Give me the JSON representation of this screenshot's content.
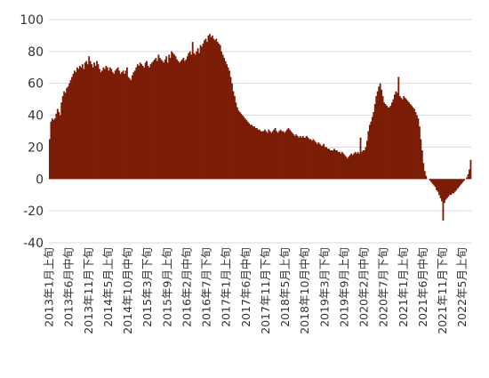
{
  "chart_data": {
    "type": "bar",
    "title": "",
    "xlabel": "",
    "ylabel": "",
    "ylim": [
      -40,
      100
    ],
    "yticks": [
      "100",
      "80",
      "60",
      "40",
      "20",
      "0",
      "-20",
      "-40"
    ],
    "grid": "horizontal",
    "legend": "none",
    "bar_color": "#7B1C06",
    "x_tick_labels": [
      "2013年1月上旬",
      "2013年6月中旬",
      "2013年11月下旬",
      "2014年5月上旬",
      "2014年10月中旬",
      "2015年3月下旬",
      "2015年9月上旬",
      "2016年2月中旬",
      "2016年7月下旬",
      "2017年1月上旬",
      "2017年6月中旬",
      "2017年11月下旬",
      "2018年5月上旬",
      "2018年10月中旬",
      "2019年3月下旬",
      "2019年9月上旬",
      "2020年2月中旬",
      "2020年7月下旬",
      "2021年1月上旬",
      "2021年6月中旬",
      "2021年11月下旬",
      "2022年5月上旬"
    ],
    "series": [
      {
        "values_by_tick_period": [
          [
            25,
            36,
            38,
            37,
            38,
            41,
            44,
            42,
            40,
            48,
            52,
            55,
            54,
            57,
            58
          ],
          [
            60,
            62,
            64,
            66,
            68,
            67,
            70,
            69,
            71,
            70,
            72,
            69,
            73,
            74,
            72
          ],
          [
            77,
            74,
            72,
            70,
            73,
            71,
            74,
            72,
            69,
            67,
            68,
            70,
            69,
            71,
            70
          ],
          [
            68,
            70,
            69,
            67,
            66,
            68,
            69,
            70,
            68,
            66,
            67,
            68,
            66,
            68,
            70
          ],
          [
            64,
            63,
            62,
            65,
            67,
            68,
            70,
            72,
            71,
            73,
            72,
            71,
            70,
            73,
            74
          ],
          [
            71,
            70,
            72,
            73,
            74,
            75,
            76,
            74,
            78,
            76,
            75,
            74,
            73,
            75,
            77
          ],
          [
            73,
            78,
            76,
            80,
            79,
            78,
            77,
            75,
            74,
            73,
            74,
            75,
            76,
            74,
            75
          ],
          [
            77,
            79,
            80,
            78,
            86,
            79,
            78,
            80,
            82,
            79,
            84,
            83,
            85,
            87,
            88
          ],
          [
            86,
            90,
            91,
            89,
            90,
            88,
            87,
            88,
            86,
            85,
            84,
            80,
            78,
            76,
            74
          ],
          [
            72,
            70,
            68,
            64,
            60,
            55,
            52,
            48,
            45,
            43,
            42,
            41,
            40,
            39,
            38
          ],
          [
            37,
            36,
            35,
            34,
            34,
            33,
            33,
            32,
            32,
            31,
            31,
            30,
            30,
            30,
            31
          ],
          [
            30,
            29,
            31,
            30,
            29,
            30,
            31,
            32,
            30,
            29,
            30,
            31,
            30,
            30,
            29
          ],
          [
            30,
            31,
            32,
            31,
            30,
            29,
            28,
            27,
            28,
            27,
            26,
            27,
            26,
            27,
            26
          ],
          [
            26,
            27,
            26,
            25,
            25,
            24,
            25,
            24,
            23,
            22,
            23,
            22,
            21,
            21,
            22
          ],
          [
            20,
            20,
            19,
            19,
            18,
            18,
            18,
            19,
            18,
            18,
            17,
            17,
            16,
            17,
            16
          ],
          [
            15,
            14,
            13,
            14,
            15,
            16,
            15,
            16,
            17,
            16,
            17,
            16,
            26,
            17,
            18
          ],
          [
            18,
            20,
            24,
            30,
            34,
            36,
            39,
            42,
            47,
            52,
            55,
            58,
            60,
            56,
            52
          ],
          [
            48,
            47,
            46,
            45,
            45,
            46,
            48,
            50,
            53,
            55,
            54,
            64,
            52,
            51,
            50
          ],
          [
            52,
            51,
            50,
            49,
            48,
            47,
            46,
            45,
            44,
            42,
            40,
            38,
            33,
            25,
            18
          ],
          [
            10,
            5,
            2,
            0,
            0,
            -1,
            -2,
            -3,
            -4,
            -5,
            -7,
            -8,
            -10,
            -12,
            -14
          ],
          [
            -26,
            -15,
            -13,
            -12,
            -11,
            -10,
            -10,
            -9,
            -9,
            -8,
            -7,
            -6,
            -5,
            -4,
            -3
          ],
          [
            -2,
            -1,
            0,
            1,
            3,
            6,
            12
          ]
        ]
      }
    ]
  }
}
